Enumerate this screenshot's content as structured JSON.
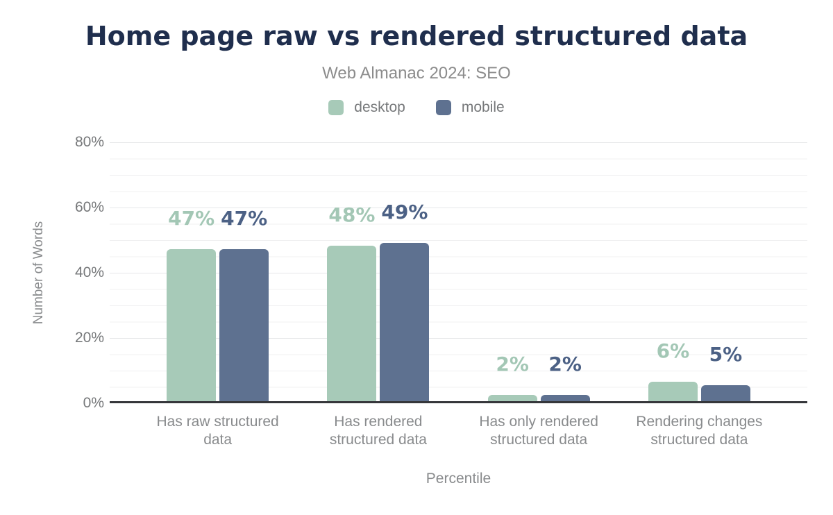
{
  "title": "Home page raw vs rendered structured data",
  "subtitle": "Web Almanac 2024: SEO",
  "chart_data": {
    "type": "bar",
    "title": "Home page raw vs rendered structured data",
    "subtitle": "Web Almanac 2024: SEO",
    "categories": [
      "Has raw structured data",
      "Has rendered structured data",
      "Has only rendered structured data",
      "Rendering changes structured data"
    ],
    "series": [
      {
        "name": "desktop",
        "color": "#a7cab8",
        "label_color": "#a3c7b5",
        "values": [
          47,
          48,
          2,
          6
        ],
        "labels": [
          "47%",
          "48%",
          "2%",
          "6%"
        ]
      },
      {
        "name": "mobile",
        "color": "#5e7190",
        "label_color": "#4c6185",
        "values": [
          47,
          49,
          2,
          5
        ],
        "labels": [
          "47%",
          "49%",
          "2%",
          "5%"
        ]
      }
    ],
    "xlabel": "Percentile",
    "ylabel": "Number of Words",
    "ylim": [
      0,
      80
    ],
    "yticks": [
      "0%",
      "20%",
      "40%",
      "60%",
      "80%"
    ],
    "grid": "horizontal minor gridlines every 5%, major every 20%",
    "legend_position": "top-center",
    "value_labels": "shown above each bar"
  },
  "colors": {
    "title": "#1f2e4d",
    "subtitle": "#8c8c8c",
    "axis_text": "#76787a",
    "category_text": "#898b8d",
    "axis_line": "#35363a",
    "desktop": "#a7cab8",
    "mobile": "#5e7190"
  }
}
